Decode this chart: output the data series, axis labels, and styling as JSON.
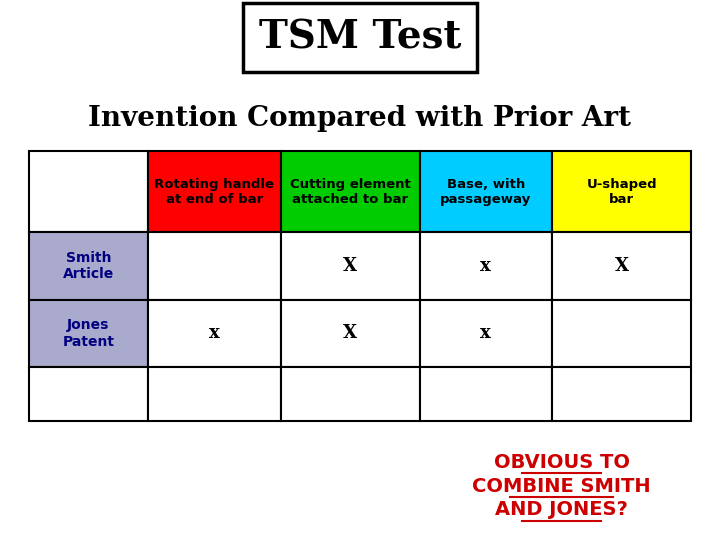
{
  "title": "TSM Test",
  "subtitle": "Invention Compared with Prior Art",
  "col_headers": [
    "Rotating handle\nat end of bar",
    "Cutting element\nattached to bar",
    "Base, with\npassageway",
    "U-shaped\nbar"
  ],
  "col_colors": [
    "#ff0000",
    "#00cc00",
    "#00ccff",
    "#ffff00"
  ],
  "row_labels": [
    "Smith\nArticle",
    "Jones\nPatent",
    ""
  ],
  "row_label_color": "#aaaacc",
  "data": [
    [
      "",
      "X",
      "x",
      "X"
    ],
    [
      "x",
      "X",
      "x",
      ""
    ],
    [
      "",
      "",
      "",
      ""
    ]
  ],
  "obvious_text": "OBVIOUS TO\nCOMBINE SMITH\nAND JONES?",
  "obvious_color": "#cc0000",
  "background_color": "#ffffff"
}
